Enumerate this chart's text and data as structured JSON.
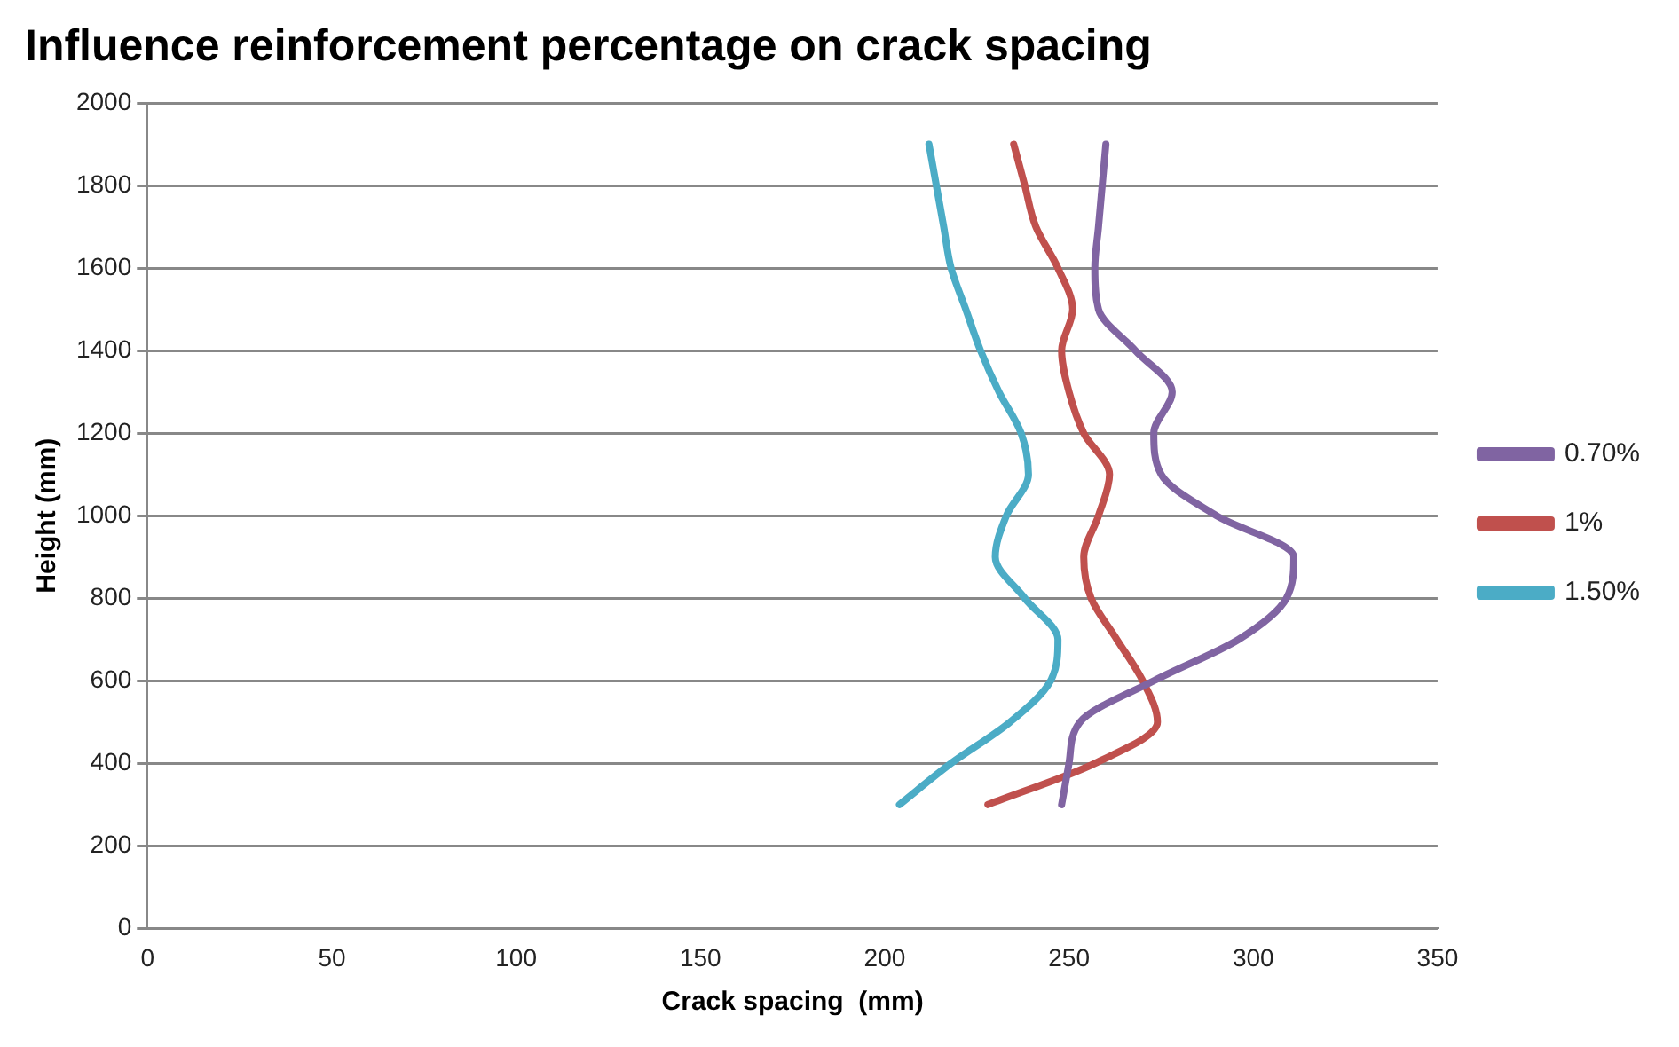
{
  "chart_data": {
    "type": "line",
    "title": "Influence reinforcement percentage on crack spacing",
    "xlabel": "Crack spacing  (mm)",
    "ylabel": "Height (mm)",
    "xlim": [
      0,
      350
    ],
    "xticks": [
      0,
      50,
      100,
      150,
      200,
      250,
      300,
      350
    ],
    "ylim": [
      0,
      2000
    ],
    "yticks": [
      0,
      200,
      400,
      600,
      800,
      1000,
      1200,
      1400,
      1600,
      1800,
      2000
    ],
    "grid": "y",
    "legend": "right",
    "marker": "none",
    "line_style": "solid",
    "series": [
      {
        "name": "0.70%",
        "color": "#8064a2",
        "x": [
          248,
          250,
          253,
          273,
          296,
          309,
          311,
          290,
          275,
          273,
          278,
          268,
          258,
          257,
          258,
          259,
          260
        ],
        "values": [
          300,
          400,
          500,
          600,
          700,
          800,
          900,
          1000,
          1100,
          1200,
          1300,
          1400,
          1500,
          1600,
          1700,
          1800,
          1900
        ]
      },
      {
        "name": "1%",
        "color": "#c0504d",
        "x": [
          228,
          257,
          274,
          270,
          263,
          256,
          254,
          258,
          261,
          254,
          250,
          248,
          251,
          247,
          241,
          238,
          235
        ],
        "values": [
          300,
          400,
          500,
          600,
          700,
          800,
          900,
          1000,
          1100,
          1200,
          1300,
          1400,
          1500,
          1600,
          1700,
          1800,
          1900
        ]
      },
      {
        "name": "1.50%",
        "color": "#4bacc6",
        "x": [
          204,
          218,
          234,
          245,
          247,
          238,
          230,
          233,
          239,
          237,
          231,
          226,
          222,
          218,
          216,
          214,
          212
        ],
        "values": [
          300,
          400,
          500,
          600,
          700,
          800,
          900,
          1000,
          1100,
          1200,
          1300,
          1400,
          1500,
          1600,
          1700,
          1800,
          1900
        ]
      }
    ]
  }
}
